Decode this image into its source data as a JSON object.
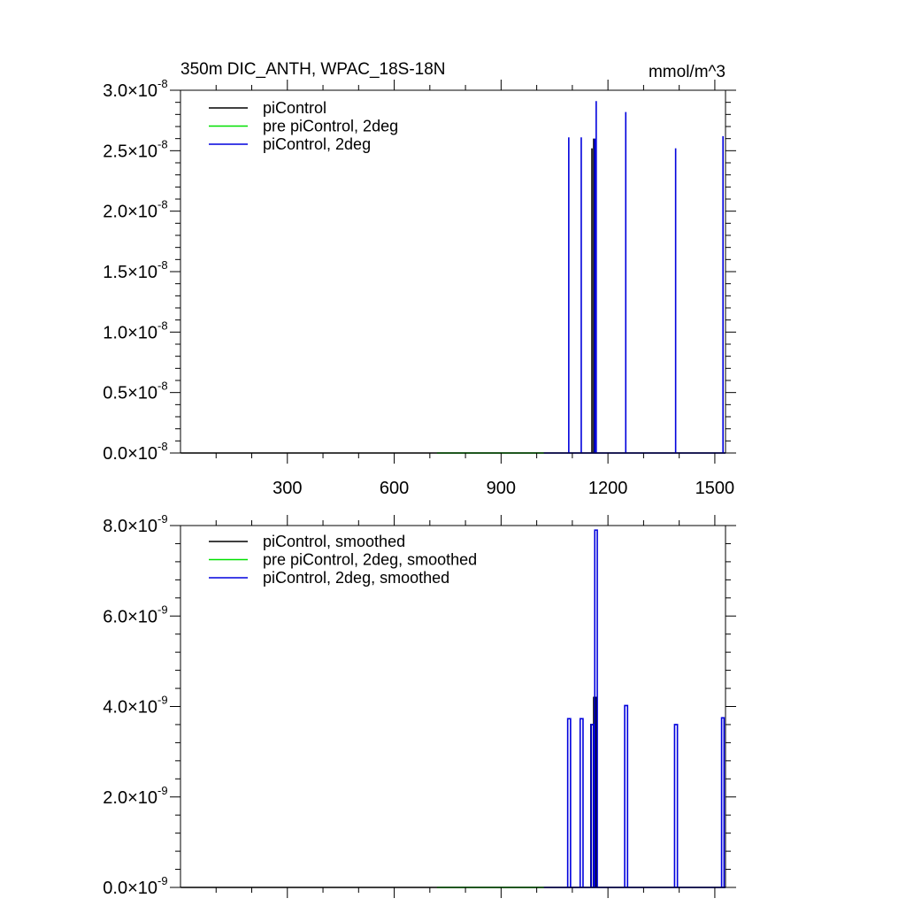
{
  "chart_data": [
    {
      "type": "line",
      "title": "350m DIC_ANTH, WPAC_18S-18N",
      "units": "mmol/m^3",
      "xlim": [
        0,
        1530
      ],
      "ylim": [
        0,
        3e-08
      ],
      "x_ticks": [
        "300",
        "600",
        "900",
        "1200",
        "1500"
      ],
      "x_tick_values": [
        300,
        600,
        900,
        1200,
        1500
      ],
      "y_ticks": [
        {
          "value": 0.0,
          "mantissa": "0.0",
          "times": "×10",
          "exp": "-8"
        },
        {
          "value": 5e-09,
          "mantissa": "0.5",
          "times": "×10",
          "exp": "-8"
        },
        {
          "value": 1e-08,
          "mantissa": "1.0",
          "times": "×10",
          "exp": "-8"
        },
        {
          "value": 1.5e-08,
          "mantissa": "1.5",
          "times": "×10",
          "exp": "-8"
        },
        {
          "value": 2e-08,
          "mantissa": "2.0",
          "times": "×10",
          "exp": "-8"
        },
        {
          "value": 2.5e-08,
          "mantissa": "2.5",
          "times": "×10",
          "exp": "-8"
        },
        {
          "value": 3e-08,
          "mantissa": "3.0",
          "times": "×10",
          "exp": "-8"
        }
      ],
      "legend_position": "top-left",
      "series": [
        {
          "name": "piControl",
          "color": "#000000",
          "x": [
            1,
            1530
          ],
          "y": [
            0,
            0
          ],
          "spikes": [
            [
              1155,
              2.52e-08
            ],
            [
              1160,
              2.6e-08
            ]
          ]
        },
        {
          "name": "pre piControl, 2deg",
          "color": "#00e000",
          "x": [
            720,
            1020
          ],
          "y": [
            0,
            0
          ],
          "spikes": []
        },
        {
          "name": "piControl, 2deg",
          "color": "#0000dd",
          "x": [
            1020,
            1530
          ],
          "y": [
            0,
            0
          ],
          "spikes": [
            [
              1090,
              2.61e-08
            ],
            [
              1125,
              2.61e-08
            ],
            [
              1163,
              2.6e-08
            ],
            [
              1167,
              2.91e-08
            ],
            [
              1250,
              2.82e-08
            ],
            [
              1390,
              2.52e-08
            ],
            [
              1523,
              2.62e-08
            ]
          ]
        }
      ]
    },
    {
      "type": "line",
      "title": "",
      "xlim": [
        0,
        1530
      ],
      "ylim": [
        0,
        8e-09
      ],
      "y_ticks": [
        {
          "value": 0.0,
          "mantissa": "0.0",
          "times": "×10",
          "exp": "-9"
        },
        {
          "value": 2e-09,
          "mantissa": "2.0",
          "times": "×10",
          "exp": "-9"
        },
        {
          "value": 4e-09,
          "mantissa": "4.0",
          "times": "×10",
          "exp": "-9"
        },
        {
          "value": 6e-09,
          "mantissa": "6.0",
          "times": "×10",
          "exp": "-9"
        },
        {
          "value": 8e-09,
          "mantissa": "8.0",
          "times": "×10",
          "exp": "-9"
        }
      ],
      "x_tick_values": [
        300,
        600,
        900,
        1200,
        1500
      ],
      "legend_position": "top-left",
      "series": [
        {
          "name": "piControl, smoothed",
          "color": "#000000",
          "x": [
            1,
            1530
          ],
          "y": [
            0,
            0
          ],
          "pulses": [
            [
              1152,
              1159,
              3.6e-09
            ],
            [
              1160,
              1167,
              4.2e-09
            ]
          ]
        },
        {
          "name": "pre piControl, 2deg, smoothed",
          "color": "#00e000",
          "x": [
            720,
            1020
          ],
          "y": [
            0,
            0
          ],
          "pulses": []
        },
        {
          "name": "piControl, 2deg, smoothed",
          "color": "#0000dd",
          "x": [
            1020,
            1530
          ],
          "y": [
            0,
            0
          ],
          "pulses": [
            [
              1087,
              1095,
              3.73e-09
            ],
            [
              1122,
              1130,
              3.73e-09
            ],
            [
              1153,
              1160,
              3.6e-09
            ],
            [
              1163,
              1170,
              7.9e-09
            ],
            [
              1247,
              1255,
              4.02e-09
            ],
            [
              1387,
              1395,
              3.6e-09
            ],
            [
              1519,
              1526,
              3.75e-09
            ]
          ]
        }
      ]
    }
  ]
}
